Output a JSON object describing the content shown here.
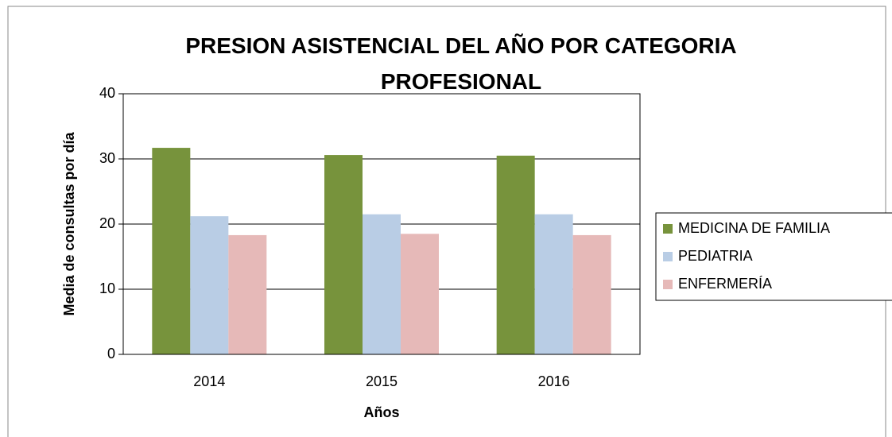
{
  "chart_data": {
    "type": "bar",
    "title": "PRESION ASISTENCIAL DEL AÑO POR CATEGORIA PROFESIONAL",
    "x_label": "Años",
    "y_label": "Media de consultas por día",
    "categories": [
      "2014",
      "2015",
      "2016"
    ],
    "series": [
      {
        "name": "MEDICINA DE FAMILIA",
        "color": "#77933c",
        "values": [
          31.7,
          30.6,
          30.5
        ]
      },
      {
        "name": "PEDIATRIA",
        "color": "#b9cde5",
        "values": [
          21.2,
          21.5,
          21.5
        ]
      },
      {
        "name": "ENFERMERÍA",
        "color": "#e6b9b8",
        "values": [
          18.3,
          18.5,
          18.3
        ]
      }
    ],
    "ylim": [
      0,
      40
    ],
    "yticks": [
      0,
      10,
      20,
      30,
      40
    ],
    "grid": true,
    "legend": "right"
  }
}
